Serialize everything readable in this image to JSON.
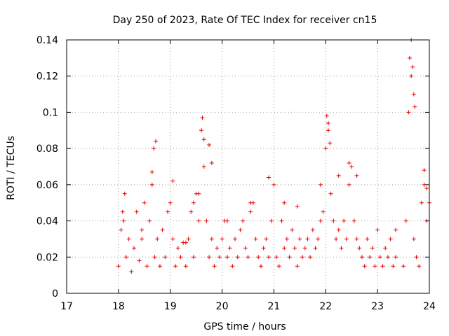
{
  "chart_data": {
    "type": "scatter",
    "title": "Day 250 of 2023, Rate Of TEC Index for receiver cn15",
    "xlabel": "GPS time / hours",
    "ylabel": "ROTI / TECUs",
    "xlim": [
      17,
      24
    ],
    "ylim": [
      0,
      0.14
    ],
    "xticks": [
      17,
      18,
      19,
      20,
      21,
      22,
      23,
      24
    ],
    "xtick_labels": [
      "17",
      "18",
      "19",
      "20",
      "21",
      "22",
      "23",
      "24"
    ],
    "yticks": [
      0,
      0.02,
      0.04,
      0.06,
      0.08,
      0.1,
      0.12,
      0.14
    ],
    "ytick_labels": [
      "0",
      "0.02",
      "0.04",
      "0.06",
      "0.08",
      "0.1",
      "0.12",
      "0.14"
    ],
    "grid": true,
    "marker": "+",
    "color": "#e60000",
    "series": [
      {
        "name": "ROTI",
        "x": [
          18.0,
          18.05,
          18.1,
          18.15,
          18.2,
          18.25,
          18.3,
          18.35,
          18.4,
          18.45,
          18.5,
          18.55,
          18.6,
          18.65,
          18.7,
          18.75,
          18.8,
          18.85,
          18.9,
          18.95,
          19.0,
          19.05,
          19.1,
          19.15,
          19.2,
          19.25,
          19.3,
          19.35,
          19.4,
          19.45,
          19.5,
          19.55,
          19.6,
          19.65,
          19.7,
          19.75,
          19.8,
          19.85,
          19.9,
          19.95,
          20.0,
          20.05,
          20.1,
          20.15,
          20.2,
          20.25,
          20.3,
          20.35,
          20.4,
          20.45,
          20.5,
          20.55,
          20.6,
          20.65,
          20.7,
          20.75,
          20.8,
          20.85,
          20.9,
          20.95,
          21.0,
          21.05,
          21.1,
          21.15,
          21.2,
          21.25,
          21.3,
          21.35,
          21.4,
          21.45,
          21.5,
          21.55,
          21.6,
          21.65,
          21.7,
          21.75,
          21.8,
          21.85,
          21.9,
          21.95,
          22.0,
          22.05,
          22.1,
          22.15,
          22.2,
          22.25,
          22.3,
          22.35,
          22.4,
          22.45,
          22.5,
          22.55,
          22.6,
          22.65,
          22.7,
          22.75,
          22.8,
          22.85,
          22.9,
          22.95,
          23.0,
          23.05,
          23.1,
          23.15,
          23.2,
          23.25,
          23.3,
          23.35,
          23.5,
          23.55,
          23.6,
          23.65,
          23.7,
          23.75,
          23.8,
          23.85,
          23.9,
          23.95,
          24.0,
          18.08,
          18.12,
          18.45,
          18.65,
          18.68,
          18.72,
          19.05,
          19.62,
          19.65,
          19.75,
          19.8,
          21.9,
          22.02,
          22.05,
          22.08,
          22.45,
          23.62,
          23.65,
          23.68,
          23.7,
          23.72,
          23.9,
          23.95,
          20.55,
          20.9,
          21.2,
          21.45,
          22.25,
          22.6,
          23.35,
          19.3,
          19.45,
          19.55,
          20.1
        ],
        "y": [
          0.015,
          0.035,
          0.04,
          0.02,
          0.03,
          0.012,
          0.025,
          0.045,
          0.018,
          0.03,
          0.05,
          0.015,
          0.04,
          0.06,
          0.02,
          0.03,
          0.015,
          0.035,
          0.02,
          0.045,
          0.05,
          0.03,
          0.015,
          0.025,
          0.02,
          0.028,
          0.015,
          0.03,
          0.045,
          0.02,
          0.055,
          0.04,
          0.09,
          0.07,
          0.04,
          0.02,
          0.03,
          0.015,
          0.025,
          0.02,
          0.03,
          0.04,
          0.02,
          0.025,
          0.015,
          0.03,
          0.02,
          0.035,
          0.04,
          0.025,
          0.02,
          0.045,
          0.05,
          0.03,
          0.02,
          0.015,
          0.025,
          0.03,
          0.02,
          0.04,
          0.06,
          0.02,
          0.015,
          0.04,
          0.025,
          0.03,
          0.02,
          0.035,
          0.025,
          0.015,
          0.03,
          0.02,
          0.025,
          0.03,
          0.02,
          0.035,
          0.025,
          0.03,
          0.04,
          0.045,
          0.08,
          0.09,
          0.055,
          0.04,
          0.03,
          0.035,
          0.025,
          0.04,
          0.03,
          0.06,
          0.07,
          0.04,
          0.03,
          0.025,
          0.02,
          0.015,
          0.03,
          0.02,
          0.025,
          0.015,
          0.035,
          0.02,
          0.015,
          0.025,
          0.02,
          0.03,
          0.015,
          0.02,
          0.015,
          0.04,
          0.1,
          0.12,
          0.03,
          0.02,
          0.015,
          0.05,
          0.06,
          0.04,
          0.05,
          0.045,
          0.055,
          0.035,
          0.067,
          0.08,
          0.084,
          0.062,
          0.097,
          0.085,
          0.082,
          0.072,
          0.06,
          0.098,
          0.094,
          0.083,
          0.072,
          0.13,
          0.14,
          0.125,
          0.11,
          0.103,
          0.068,
          0.058,
          0.05,
          0.064,
          0.05,
          0.048,
          0.065,
          0.065,
          0.035,
          0.028,
          0.05,
          0.055,
          0.04
        ]
      }
    ]
  }
}
